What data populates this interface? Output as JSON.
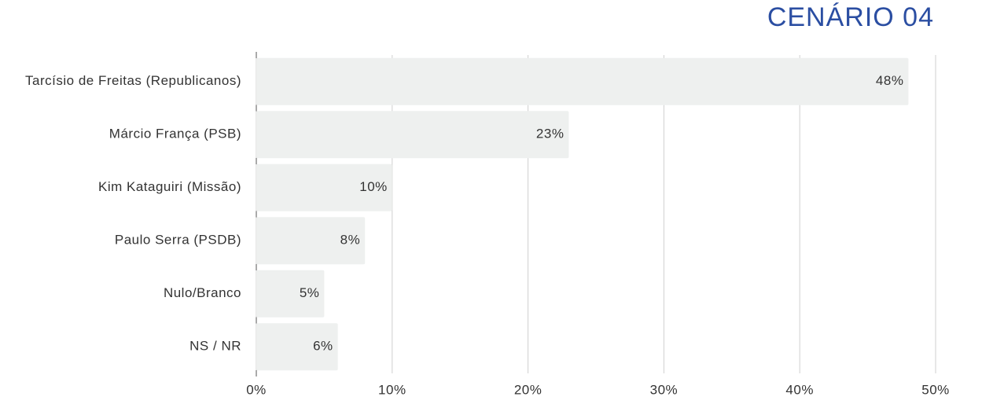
{
  "chart_data": {
    "type": "bar",
    "orientation": "horizontal",
    "title": "CENÁRIO 04",
    "categories": [
      "Tarcísio de Freitas (Republicanos)",
      "Márcio França (PSB)",
      "Kim Kataguiri (Missão)",
      "Paulo Serra (PSDB)",
      "Nulo/Branco",
      "NS / NR"
    ],
    "values": [
      48,
      23,
      10,
      8,
      5,
      6
    ],
    "value_labels": [
      "48%",
      "23%",
      "10%",
      "8%",
      "5%",
      "6%"
    ],
    "color": "#eef0ef",
    "xlim": [
      0,
      50
    ],
    "xticks": [
      {
        "value": 0,
        "label": "0%"
      },
      {
        "value": 10,
        "label": "10%"
      },
      {
        "value": 20,
        "label": "20%"
      },
      {
        "value": 30,
        "label": "30%"
      },
      {
        "value": 40,
        "label": "40%"
      },
      {
        "value": 50,
        "label": "50%"
      }
    ],
    "grid": true
  }
}
